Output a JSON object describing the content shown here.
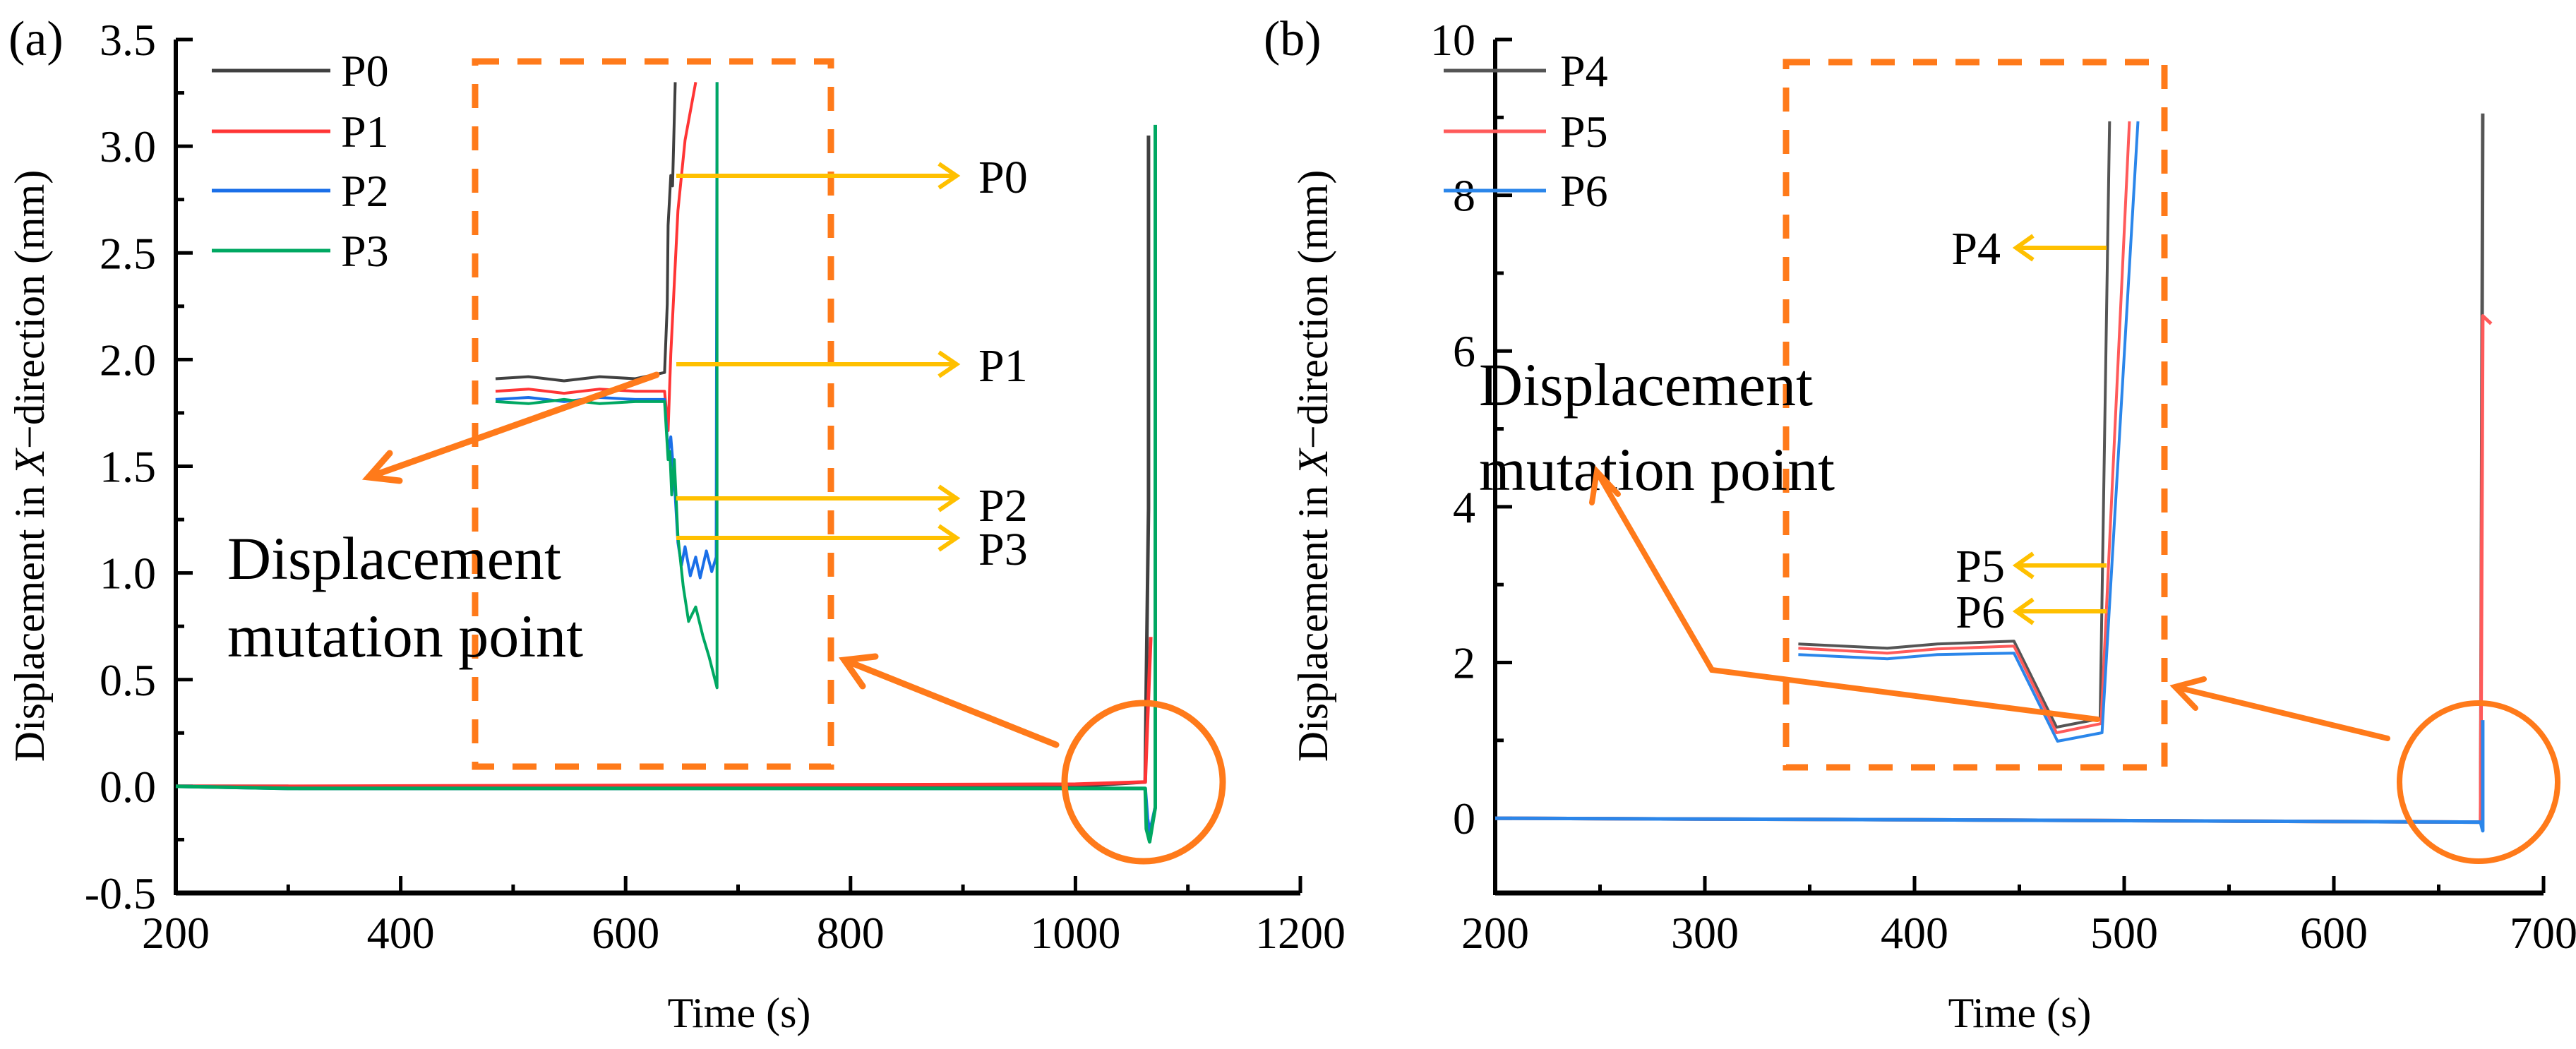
{
  "colors": {
    "P0": "#404040",
    "P1": "#ff3535",
    "P2": "#1a6fe8",
    "P3": "#00a862",
    "P4": "#555555",
    "P5": "#ff5a5a",
    "P6": "#2b86ea",
    "highlight": "#ff7a1a",
    "pointer": "#ffc000"
  },
  "chart_data": [
    {
      "type": "line",
      "panel_label": "(a)",
      "xlabel": "Time (s)",
      "ylabel_parts": [
        "Displacement in ",
        "X",
        "−direction (mm)"
      ],
      "xlim": [
        200,
        1200
      ],
      "ylim": [
        -0.5,
        3.5
      ],
      "xticks": [
        200,
        400,
        600,
        800,
        1000,
        1200
      ],
      "xtick_labels": [
        "200",
        "400",
        "600",
        "800",
        "1000",
        "1200"
      ],
      "yticks": [
        -0.5,
        0,
        0.5,
        1,
        1.5,
        2,
        2.5,
        3,
        3.5
      ],
      "ytick_labels": [
        "-0.5",
        "0.0",
        "0.5",
        "1.0",
        "1.5",
        "2.0",
        "2.5",
        "3.0",
        "3.5"
      ],
      "grid": false,
      "legend_position": "top-left",
      "series": [
        {
          "name": "P0",
          "points": [
            [
              200,
              0
            ],
            [
              300,
              0
            ],
            [
              310,
              -0.01
            ],
            [
              600,
              -0.01
            ],
            [
              1000,
              0.0
            ],
            [
              1062,
              0.02
            ],
            [
              1063,
              0.5
            ],
            [
              1065,
              1.3
            ],
            [
              1065,
              3.05
            ]
          ]
        },
        {
          "name": "P1",
          "points": [
            [
              200,
              0
            ],
            [
              300,
              0
            ],
            [
              1000,
              0.01
            ],
            [
              1062,
              0.02
            ],
            [
              1064,
              0.3
            ],
            [
              1067,
              0.7
            ]
          ]
        },
        {
          "name": "P2",
          "points": [
            [
              200,
              0
            ],
            [
              300,
              -0.01
            ],
            [
              1062,
              -0.01
            ],
            [
              1064,
              -0.15
            ],
            [
              1066,
              -0.22
            ],
            [
              1071,
              -0.1
            ],
            [
              1071,
              1.5
            ]
          ]
        },
        {
          "name": "P3",
          "points": [
            [
              200,
              0
            ],
            [
              300,
              -0.01
            ],
            [
              1062,
              -0.01
            ],
            [
              1063,
              -0.2
            ],
            [
              1066,
              -0.26
            ],
            [
              1071,
              -0.1
            ],
            [
              1071,
              3.1
            ]
          ]
        }
      ],
      "inset": {
        "xlim": [
          1040,
          1080
        ],
        "ylim": [
          -0.3,
          3.1
        ],
        "series": [
          {
            "name": "P0",
            "points": [
              [
                1042.3,
                1.57
              ],
              [
                1046,
                1.58
              ],
              [
                1050,
                1.56
              ],
              [
                1054,
                1.58
              ],
              [
                1058,
                1.57
              ],
              [
                1061.3,
                1.6
              ],
              [
                1061.6,
                1.93
              ],
              [
                1061.7,
                2.31
              ],
              [
                1062.0,
                2.55
              ],
              [
                1062.2,
                2.5
              ],
              [
                1062.5,
                3.0
              ]
            ]
          },
          {
            "name": "P1",
            "points": [
              [
                1042.3,
                1.51
              ],
              [
                1046,
                1.52
              ],
              [
                1050,
                1.5
              ],
              [
                1054,
                1.52
              ],
              [
                1058,
                1.51
              ],
              [
                1061.3,
                1.51
              ],
              [
                1061.7,
                1.32
              ],
              [
                1062.0,
                1.69
              ],
              [
                1062.8,
                2.38
              ],
              [
                1063.6,
                2.72
              ],
              [
                1064.8,
                3.0
              ]
            ]
          },
          {
            "name": "P2",
            "points": [
              [
                1042.3,
                1.47
              ],
              [
                1046,
                1.48
              ],
              [
                1050,
                1.46
              ],
              [
                1054,
                1.48
              ],
              [
                1058,
                1.47
              ],
              [
                1061.3,
                1.47
              ],
              [
                1061.7,
                1.22
              ],
              [
                1062.0,
                1.29
              ],
              [
                1062.4,
                1.08
              ],
              [
                1062.8,
                0.78
              ],
              [
                1063.2,
                0.67
              ],
              [
                1063.6,
                0.76
              ],
              [
                1064.2,
                0.62
              ],
              [
                1064.8,
                0.71
              ],
              [
                1065.3,
                0.61
              ],
              [
                1066.0,
                0.74
              ],
              [
                1066.6,
                0.64
              ],
              [
                1067.1,
                0.71
              ],
              [
                1067.2,
                3.0
              ]
            ]
          },
          {
            "name": "P3",
            "points": [
              [
                1042.3,
                1.46
              ],
              [
                1046,
                1.45
              ],
              [
                1050,
                1.47
              ],
              [
                1054,
                1.45
              ],
              [
                1058,
                1.46
              ],
              [
                1061.3,
                1.46
              ],
              [
                1061.7,
                1.18
              ],
              [
                1061.9,
                1.22
              ],
              [
                1062.1,
                1.01
              ],
              [
                1062.4,
                1.18
              ],
              [
                1062.8,
                0.81
              ],
              [
                1063.4,
                0.57
              ],
              [
                1064.0,
                0.4
              ],
              [
                1064.8,
                0.47
              ],
              [
                1065.6,
                0.33
              ],
              [
                1066.3,
                0.23
              ],
              [
                1067.2,
                0.08
              ],
              [
                1067.2,
                3.0
              ]
            ]
          }
        ],
        "pointer_labels": [
          "P0",
          "P1",
          "P2",
          "P3"
        ]
      },
      "annotation": [
        "Displacement",
        "mutation point"
      ]
    },
    {
      "type": "line",
      "panel_label": "(b)",
      "xlabel": "Time (s)",
      "ylabel_parts": [
        "Displacement in ",
        "X",
        "−direction (mm)"
      ],
      "xlim": [
        200,
        700
      ],
      "ylim": [
        -0.96,
        10
      ],
      "xticks": [
        200,
        300,
        400,
        500,
        600,
        700
      ],
      "xtick_labels": [
        "200",
        "300",
        "400",
        "500",
        "600",
        "700"
      ],
      "yticks": [
        0,
        2,
        4,
        6,
        8,
        10
      ],
      "ytick_labels": [
        "0",
        "2",
        "4",
        "6",
        "8",
        "10"
      ],
      "grid": false,
      "legend_position": "top-left",
      "series": [
        {
          "name": "P4",
          "points": [
            [
              200,
              0
            ],
            [
              400,
              -0.02
            ],
            [
              670,
              -0.05
            ],
            [
              671,
              9.05
            ]
          ]
        },
        {
          "name": "P5",
          "points": [
            [
              200,
              0
            ],
            [
              400,
              -0.02
            ],
            [
              670,
              -0.05
            ],
            [
              671,
              6.45
            ],
            [
              675,
              6.35
            ]
          ]
        },
        {
          "name": "P6",
          "points": [
            [
              200,
              0
            ],
            [
              400,
              -0.02
            ],
            [
              670,
              -0.05
            ],
            [
              671,
              -0.16
            ],
            [
              671,
              1.26
            ]
          ]
        }
      ],
      "inset": {
        "xlim": [
          640,
          680
        ],
        "ylim": [
          -1,
          9
        ],
        "series": [
          {
            "name": "P4",
            "points": [
              [
                641.3,
                0.75
              ],
              [
                650.7,
                0.69
              ],
              [
                656,
                0.75
              ],
              [
                664.1,
                0.79
              ],
              [
                668.6,
                -0.43
              ],
              [
                673.2,
                -0.31
              ],
              [
                674.2,
                8.16
              ]
            ]
          },
          {
            "name": "P5",
            "points": [
              [
                641.3,
                0.69
              ],
              [
                650.7,
                0.62
              ],
              [
                656,
                0.68
              ],
              [
                664.1,
                0.72
              ],
              [
                668.6,
                -0.51
              ],
              [
                673.3,
                -0.38
              ],
              [
                676.3,
                8.16
              ]
            ]
          },
          {
            "name": "P6",
            "points": [
              [
                641.3,
                0.6
              ],
              [
                650.7,
                0.54
              ],
              [
                656,
                0.6
              ],
              [
                664.1,
                0.62
              ],
              [
                668.7,
                -0.63
              ],
              [
                673.4,
                -0.51
              ],
              [
                677.2,
                8.16
              ]
            ]
          }
        ],
        "pointer_labels": [
          "P4",
          "P5",
          "P6"
        ]
      },
      "annotation": [
        "Displacement",
        "mutation point"
      ]
    }
  ]
}
